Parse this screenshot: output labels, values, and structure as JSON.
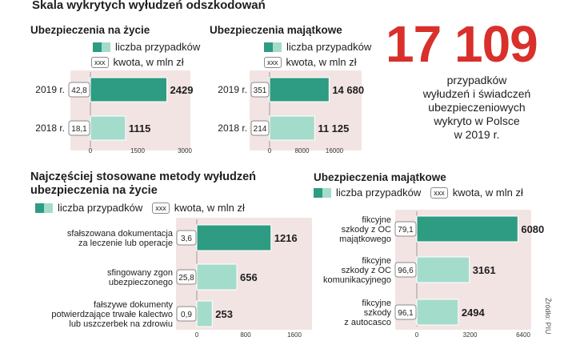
{
  "header": {
    "title": "Skala wykrytych wyłudzeń odszkodowań"
  },
  "legend": {
    "count_label": "liczba przypadków",
    "amount_box": "xxx",
    "amount_label": "kwota, w mln zł"
  },
  "headline": {
    "number": "17 109",
    "description": [
      "przypadków",
      "wyłudzeń i świadczeń",
      "ubezpieczeniowych",
      "wykryto w Polsce",
      "w 2019 r."
    ]
  },
  "source": "Źródło: PIU",
  "colors": {
    "dark": "#2e9c82",
    "light": "#a4dccb",
    "panel": "#f3e4e4",
    "accent": "#d9302b",
    "text": "#1e1e1e"
  },
  "chart_data": [
    {
      "id": "life",
      "type": "bar",
      "orientation": "horizontal",
      "title": "Ubezpieczenia na życie",
      "categories": [
        "2019 r.",
        "2018 r."
      ],
      "series": [
        {
          "name": "liczba przypadków",
          "values": [
            2429,
            1115
          ]
        },
        {
          "name": "kwota, w mln zł",
          "values": [
            42.8,
            18.1
          ]
        }
      ],
      "value_labels": [
        "2429",
        "1115"
      ],
      "amount_labels": [
        "42,8",
        "18,1"
      ],
      "xlim": [
        0,
        3000
      ],
      "ticks": [
        "0",
        "1500",
        "3000"
      ]
    },
    {
      "id": "property",
      "type": "bar",
      "orientation": "horizontal",
      "title": "Ubezpieczenia majątkowe",
      "categories": [
        "2019 r.",
        "2018 r."
      ],
      "series": [
        {
          "name": "liczba przypadków",
          "values": [
            14680,
            11125
          ]
        },
        {
          "name": "kwota, w mln zł",
          "values": [
            351,
            214
          ]
        }
      ],
      "value_labels": [
        "14 680",
        "11 125"
      ],
      "amount_labels": [
        "351",
        "214"
      ],
      "xlim": [
        0,
        16000
      ],
      "ticks": [
        "0",
        "8000",
        "16000"
      ]
    },
    {
      "id": "methods_life",
      "type": "bar",
      "orientation": "horizontal",
      "title": [
        "Najczęściej stosowane metody wyłudzeń",
        "ubezpieczenia na życie"
      ],
      "categories": [
        [
          "sfałszowana dokumentacja",
          "za leczenie lub operacje"
        ],
        [
          "sfingowany zgon",
          "ubezpieczonego"
        ],
        [
          "fałszywe dokumenty",
          "potwierdzające trwałe kalectwo",
          "lub uszczerbek na zdrowiu"
        ]
      ],
      "series": [
        {
          "name": "liczba przypadków",
          "values": [
            1216,
            656,
            253
          ]
        },
        {
          "name": "kwota, w mln zł",
          "values": [
            3.6,
            25.8,
            0.9
          ]
        }
      ],
      "value_labels": [
        "1216",
        "656",
        "253"
      ],
      "amount_labels": [
        "3,6",
        "25,8",
        "0,9"
      ],
      "xlim": [
        0,
        1600
      ],
      "ticks": [
        "0",
        "800",
        "1600"
      ]
    },
    {
      "id": "methods_property",
      "type": "bar",
      "orientation": "horizontal",
      "title": "Ubezpieczenia majątkowe",
      "categories": [
        [
          "fikcyjne",
          "szkody z OC",
          "majątkowego"
        ],
        [
          "fikcyjne",
          "szkody z OC",
          "komunikacyjnego"
        ],
        [
          "fikcyjne",
          "szkody",
          "z autocasco"
        ]
      ],
      "series": [
        {
          "name": "liczba przypadków",
          "values": [
            6080,
            3161,
            2494
          ]
        },
        {
          "name": "kwota, w mln zł",
          "values": [
            79.1,
            96.6,
            96.1
          ]
        }
      ],
      "value_labels": [
        "6080",
        "3161",
        "2494"
      ],
      "amount_labels": [
        "79,1",
        "96,6",
        "96,1"
      ],
      "xlim": [
        0,
        6400
      ],
      "ticks": [
        "0",
        "3200",
        "6400"
      ]
    }
  ]
}
